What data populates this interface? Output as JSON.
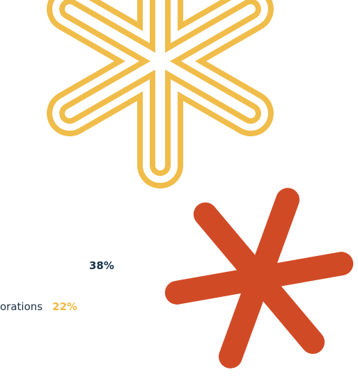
{
  "stats": [
    {
      "label": "",
      "value": "38%",
      "value_color": "#14304a"
    },
    {
      "label": "orations",
      "value": "22%",
      "value_color": "#f0b83f"
    }
  ],
  "decor": {
    "outline_asterisk_color": "#f0bd4a",
    "solid_asterisk_color": "#d14a26"
  }
}
